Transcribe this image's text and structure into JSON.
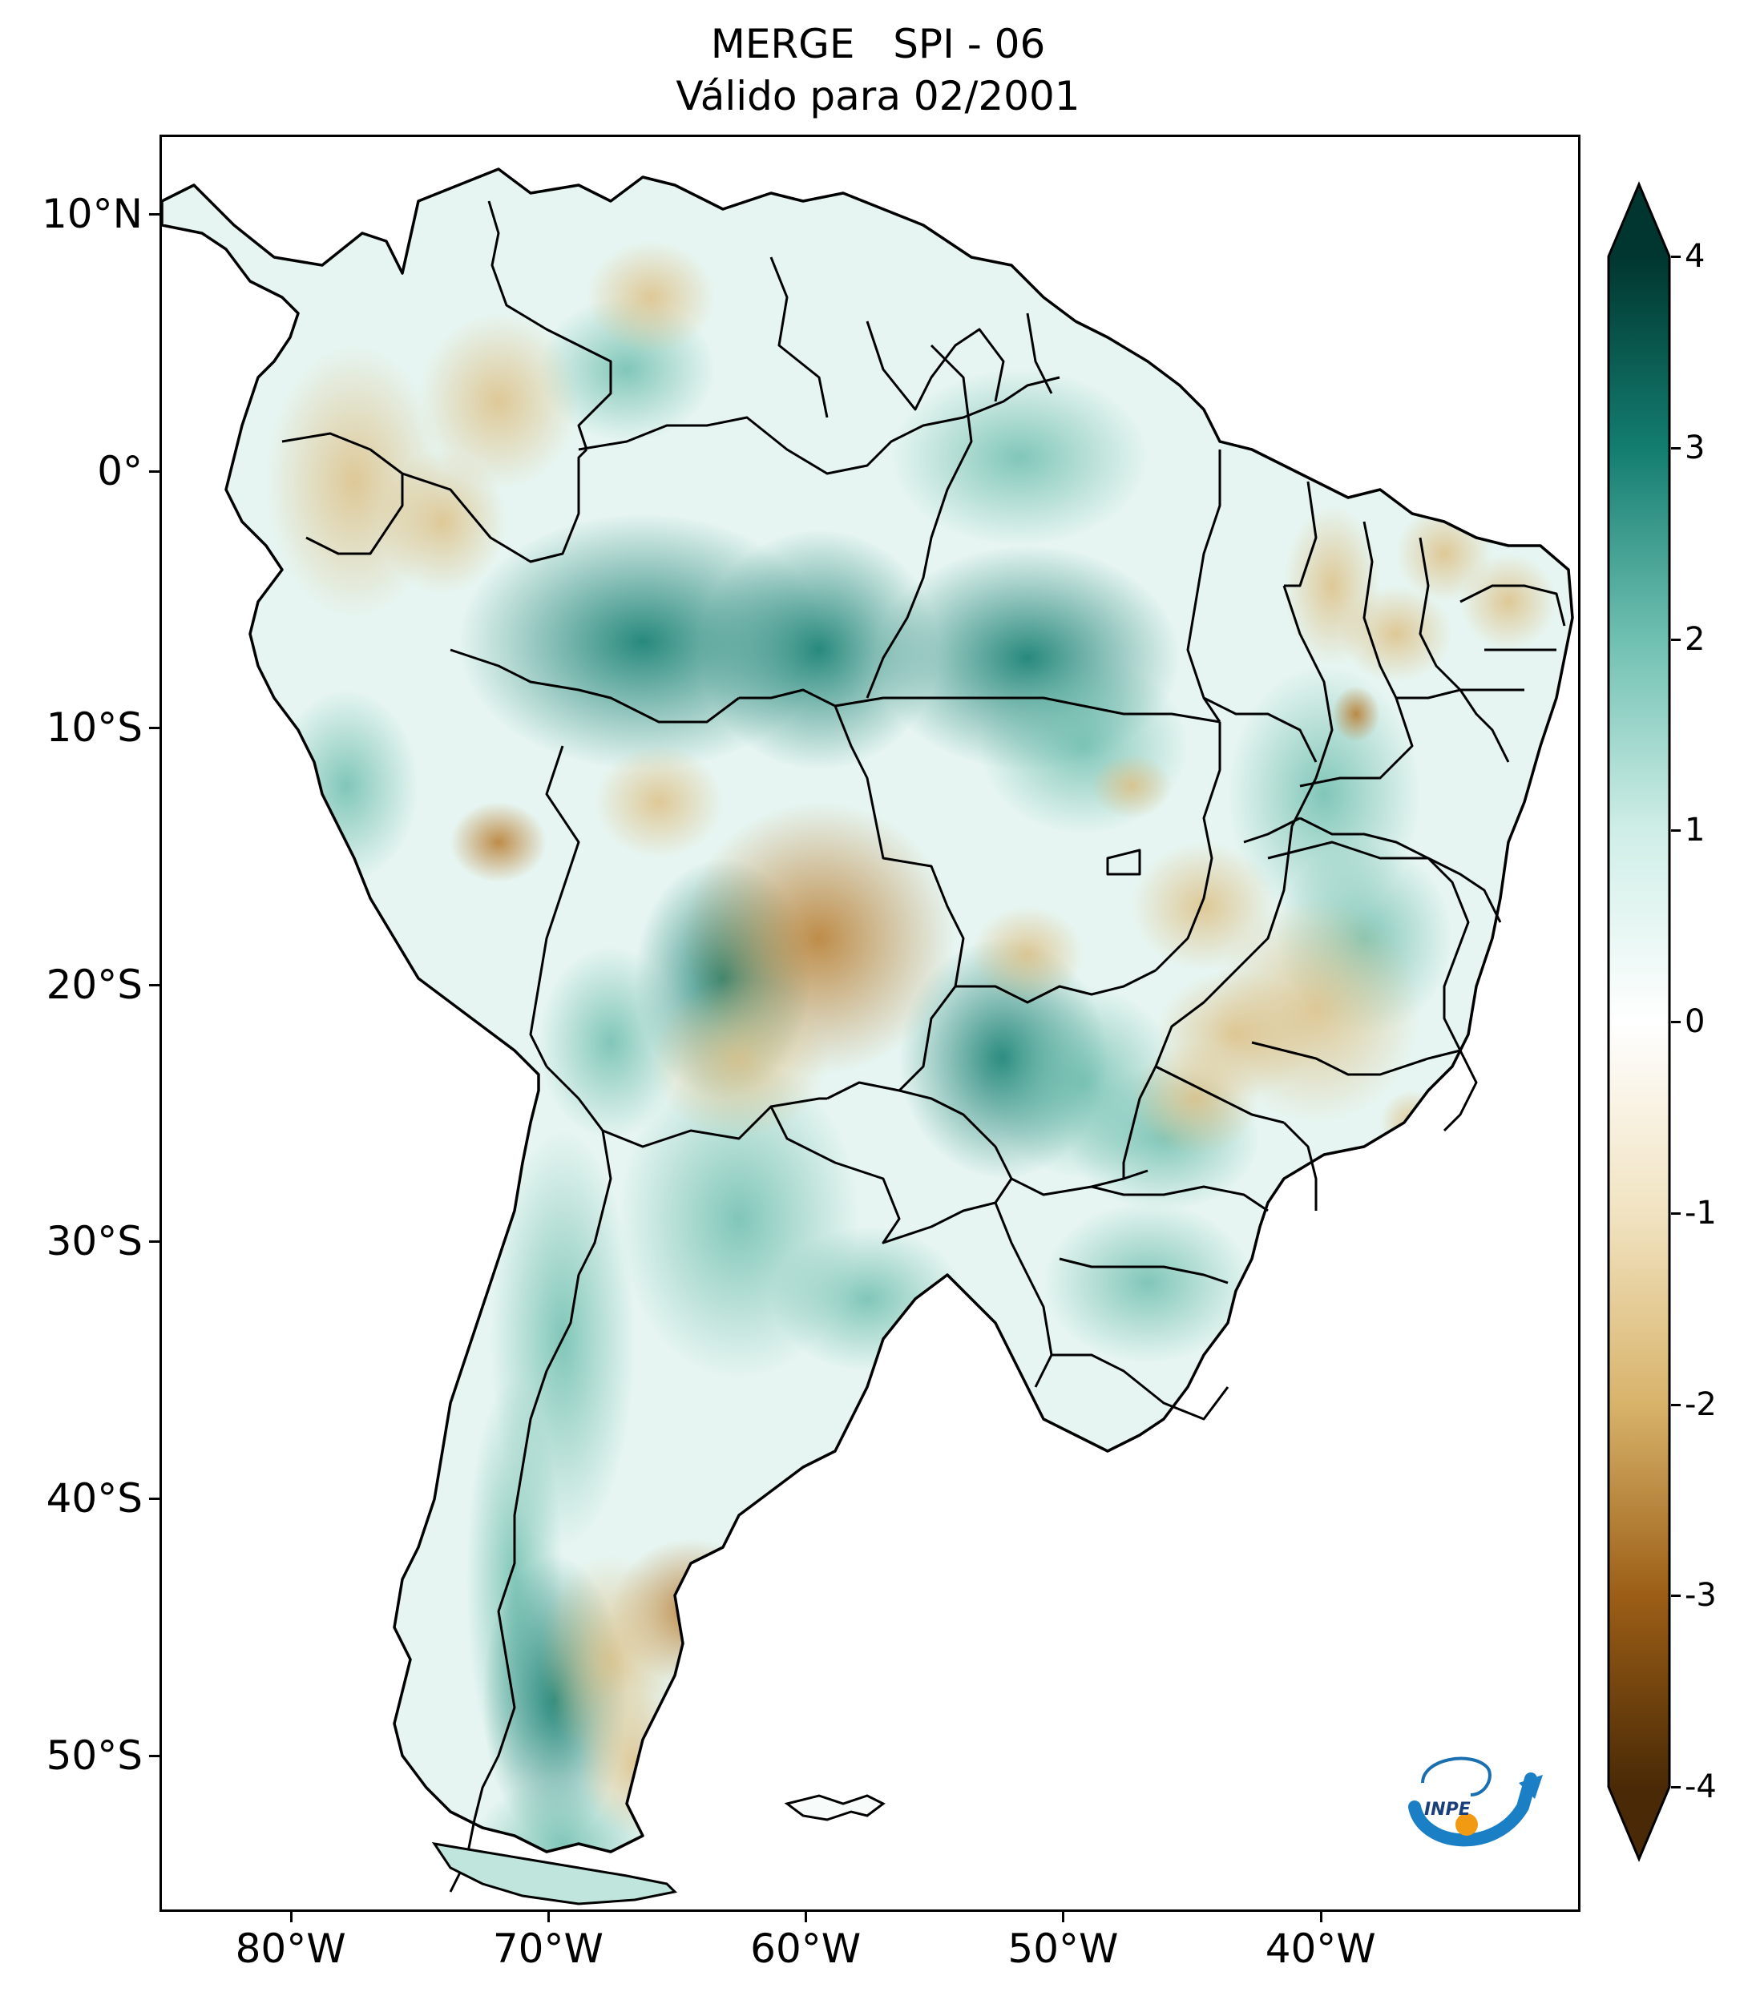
{
  "title": {
    "line1": "MERGE   SPI - 06",
    "line2": "Válido para 02/2001"
  },
  "map": {
    "variable": "SPI - 06",
    "source": "MERGE",
    "valid_period": "02/2001",
    "lat_ticks": [
      {
        "lat": 10,
        "label": "10°N"
      },
      {
        "lat": 0,
        "label": "0°"
      },
      {
        "lat": -10,
        "label": "10°S"
      },
      {
        "lat": -20,
        "label": "20°S"
      },
      {
        "lat": -30,
        "label": "30°S"
      },
      {
        "lat": -40,
        "label": "40°S"
      },
      {
        "lat": -50,
        "label": "50°S"
      }
    ],
    "lon_ticks": [
      {
        "lon": -80,
        "label": "80°W"
      },
      {
        "lon": -70,
        "label": "70°W"
      },
      {
        "lon": -60,
        "label": "60°W"
      },
      {
        "lon": -50,
        "label": "50°W"
      },
      {
        "lon": -40,
        "label": "40°W"
      }
    ],
    "extent": {
      "lon_min": -85,
      "lon_max": -30,
      "lat_min": -56,
      "lat_max": 13
    }
  },
  "colorbar": {
    "min": -4,
    "max": 4,
    "extend": "both",
    "ticks": [
      "4",
      "3",
      "2",
      "1",
      "0",
      "-1",
      "-2",
      "-3",
      "-4"
    ],
    "colors": {
      "dry_extreme": "#4a2a06",
      "dry_strong": "#9c5e16",
      "dry_moderate": "#d8b36a",
      "dry_mild": "#f1e3c1",
      "neutral": "#ffffff",
      "wet_mild": "#cfeee7",
      "wet_moderate": "#6fc0b1",
      "wet_strong": "#137d70",
      "wet_extreme": "#00362f"
    }
  },
  "logo": {
    "text": "INPE",
    "icon": "inpe-logo-icon"
  }
}
